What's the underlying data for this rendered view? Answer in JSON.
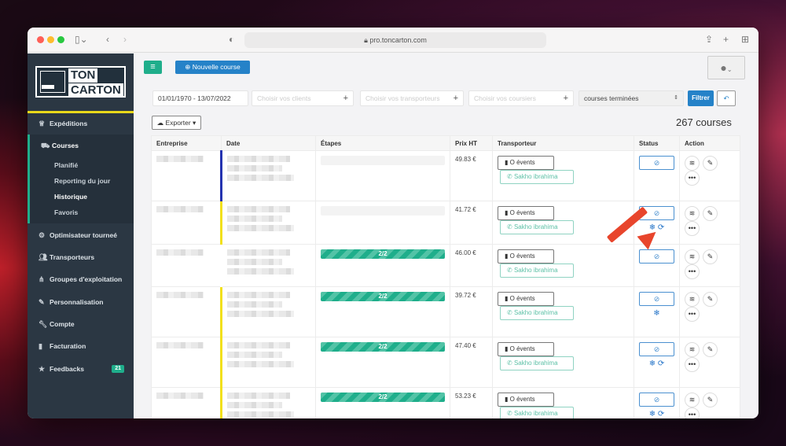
{
  "browser": {
    "url": "pro.toncarton.com"
  },
  "logo": {
    "line1": "TON",
    "line2": "CARTON"
  },
  "sidebar": {
    "items": [
      {
        "label": "Expéditions",
        "icon": "trophy-icon"
      },
      {
        "label": "Courses",
        "icon": "truck-icon"
      },
      {
        "label": "Optimisateur tourneé",
        "icon": "gears-icon"
      },
      {
        "label": "Transporteurs",
        "icon": "users-icon"
      },
      {
        "label": "Groupes d'exploitation",
        "icon": "sitemap-icon"
      },
      {
        "label": "Personnalisation",
        "icon": "paint-icon"
      },
      {
        "label": "Compte",
        "icon": "wrench-icon"
      },
      {
        "label": "Facturation",
        "icon": "file-icon"
      },
      {
        "label": "Feedbacks",
        "icon": "star-icon",
        "badge": "21"
      }
    ],
    "subitems": [
      "Planifié",
      "Reporting du jour",
      "Historique",
      "Favoris"
    ]
  },
  "toolbar": {
    "new_label": "Nouvelle course"
  },
  "filters": {
    "date": "01/01/1970 - 13/07/2022",
    "clients_placeholder": "Choisir vos clients",
    "transporteurs_placeholder": "Choisir vos transporteurs",
    "coursiers_placeholder": "Choisir vos coursiers",
    "status_select": "courses terminées",
    "filter_label": "Filtrer"
  },
  "export_label": "Exporter",
  "count": "267 courses",
  "table": {
    "headers": [
      "Entreprise",
      "Date",
      "Étapes",
      "Prix HT",
      "Transporteur",
      "Status",
      "Action"
    ],
    "rows": [
      {
        "etapes": "",
        "prix": "49.83 €",
        "transporteur": "O évents",
        "coursier": "Sakho ibrahima",
        "border": "#2433b0",
        "icons": ""
      },
      {
        "etapes": "",
        "prix": "41.72 €",
        "transporteur": "O évents",
        "coursier": "Sakho ibrahima",
        "border": "#f2e01a",
        "icons": "❄ ⟳"
      },
      {
        "etapes": "2/2",
        "prix": "46.00 €",
        "transporteur": "O évents",
        "coursier": "Sakho ibrahima",
        "border": "transparent",
        "icons": ""
      },
      {
        "etapes": "2/2",
        "prix": "39.72 €",
        "transporteur": "O évents",
        "coursier": "Sakho ibrahima",
        "border": "#f2e01a",
        "icons": "❄"
      },
      {
        "etapes": "2/2",
        "prix": "47.40 €",
        "transporteur": "O évents",
        "coursier": "Sakho ibrahima",
        "border": "#f2e01a",
        "icons": "❄ ⟳"
      },
      {
        "etapes": "2/2",
        "prix": "53.23 €",
        "transporteur": "O évents",
        "coursier": "Sakho ibrahima",
        "border": "#f2e01a",
        "icons": "❄ ⟳"
      }
    ]
  },
  "colors": {
    "sidebar": "#2b3743",
    "accent_green": "#1fae8b",
    "accent_blue": "#2582c8",
    "highlight_yellow": "#e8d81a",
    "arrow": "#e8452c"
  }
}
